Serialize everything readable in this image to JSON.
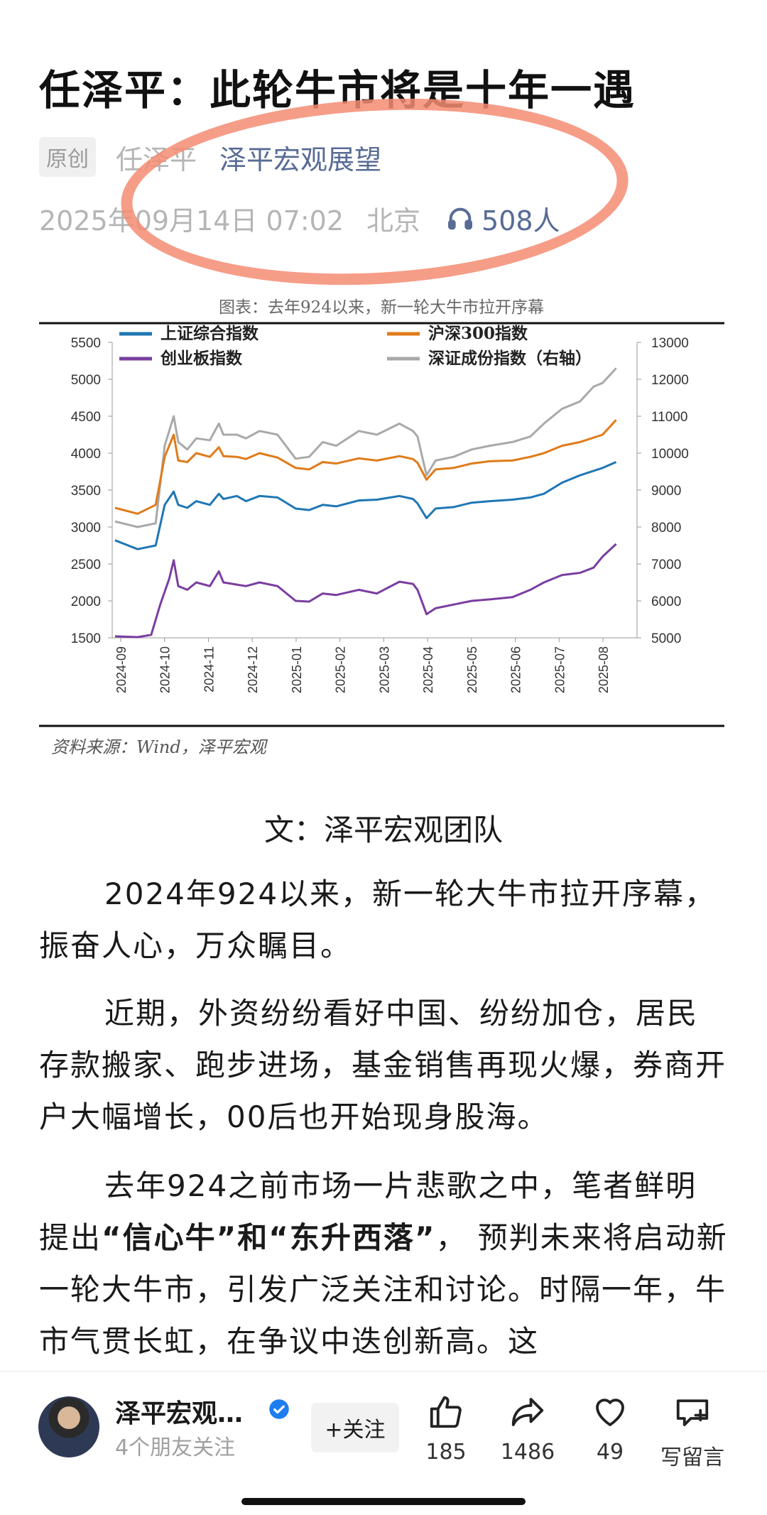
{
  "article": {
    "title": "任泽平：此轮牛市将是十年一遇",
    "badge": "原创",
    "author": "任泽平",
    "account": "泽平宏观展望",
    "datetime": "2025年09月14日 07:02",
    "location": "北京",
    "listeners": "508人",
    "byline": "文：泽平宏观团队",
    "paragraphs": [
      "2024年924以来，新一轮大牛市拉开序幕，振奋人心，万众瞩目。",
      "近期，外资纷纷看好中国、纷纷加仓，居民存款搬家、跑步进场，基金销售再现火爆，券商开户大幅增长，00后也开始现身股海。"
    ],
    "p3": {
      "a": "去年924之前市场一片悲歌之中，笔者鲜明提出",
      "b1": "“信心牛”和“东升西落”",
      "c": "，  预判未来将启动新一轮大牛市，引发广泛关注和讨论。时隔一年，牛市气贯长虹，在争议中迭创新高。这"
    },
    "chart_source": "资料来源：Wind，泽平宏观"
  },
  "chart_data": {
    "type": "line",
    "title": "图表：去年924以来，新一轮大牛市拉开序幕",
    "x_ticks": [
      "2024-09",
      "2024-10",
      "2024-11",
      "2024-12",
      "2025-01",
      "2025-02",
      "2025-03",
      "2025-04",
      "2025-05",
      "2025-06",
      "2025-07",
      "2025-08"
    ],
    "y_left": [
      5500,
      5000,
      4500,
      4000,
      3500,
      3000,
      2500,
      2000,
      1500
    ],
    "y_right": [
      13000,
      12000,
      11000,
      10000,
      9000,
      8000,
      7000,
      6000,
      5000
    ],
    "ylim_left": [
      1500,
      5500
    ],
    "ylim_right": [
      5000,
      13000
    ],
    "legend": [
      "上证综合指数",
      "沪深300指数",
      "创业板指数",
      "深证成份指数（右轴）"
    ],
    "colors": [
      "#1f77b4",
      "#e07b1a",
      "#7a3ea0",
      "#a9a9a9"
    ],
    "series": [
      {
        "name": "上证综合指数",
        "axis": "left",
        "values": [
          [
            0,
            2820
          ],
          [
            5,
            2700
          ],
          [
            9,
            2750
          ],
          [
            11,
            3300
          ],
          [
            13,
            3480
          ],
          [
            14,
            3300
          ],
          [
            16,
            3260
          ],
          [
            18,
            3350
          ],
          [
            21,
            3300
          ],
          [
            23,
            3450
          ],
          [
            24,
            3380
          ],
          [
            27,
            3420
          ],
          [
            29,
            3350
          ],
          [
            32,
            3420
          ],
          [
            36,
            3400
          ],
          [
            40,
            3250
          ],
          [
            43,
            3230
          ],
          [
            46,
            3300
          ],
          [
            49,
            3280
          ],
          [
            54,
            3360
          ],
          [
            58,
            3370
          ],
          [
            63,
            3420
          ],
          [
            66,
            3380
          ],
          [
            67,
            3320
          ],
          [
            69,
            3120
          ],
          [
            71,
            3250
          ],
          [
            75,
            3270
          ],
          [
            79,
            3330
          ],
          [
            83,
            3350
          ],
          [
            88,
            3370
          ],
          [
            92,
            3400
          ],
          [
            95,
            3450
          ],
          [
            99,
            3600
          ],
          [
            103,
            3700
          ],
          [
            108,
            3800
          ],
          [
            111,
            3880
          ]
        ]
      },
      {
        "name": "沪深300指数",
        "axis": "left",
        "values": [
          [
            0,
            3260
          ],
          [
            5,
            3180
          ],
          [
            9,
            3300
          ],
          [
            11,
            3950
          ],
          [
            13,
            4250
          ],
          [
            14,
            3900
          ],
          [
            16,
            3880
          ],
          [
            18,
            4000
          ],
          [
            21,
            3950
          ],
          [
            23,
            4080
          ],
          [
            24,
            3960
          ],
          [
            27,
            3950
          ],
          [
            29,
            3920
          ],
          [
            32,
            4000
          ],
          [
            36,
            3940
          ],
          [
            40,
            3800
          ],
          [
            43,
            3780
          ],
          [
            46,
            3880
          ],
          [
            49,
            3860
          ],
          [
            54,
            3930
          ],
          [
            58,
            3900
          ],
          [
            63,
            3960
          ],
          [
            66,
            3920
          ],
          [
            67,
            3870
          ],
          [
            69,
            3640
          ],
          [
            71,
            3780
          ],
          [
            75,
            3800
          ],
          [
            79,
            3860
          ],
          [
            83,
            3890
          ],
          [
            88,
            3900
          ],
          [
            92,
            3950
          ],
          [
            95,
            4000
          ],
          [
            99,
            4100
          ],
          [
            103,
            4150
          ],
          [
            108,
            4250
          ],
          [
            111,
            4450
          ]
        ]
      },
      {
        "name": "创业板指数",
        "axis": "left",
        "values": [
          [
            0,
            1520
          ],
          [
            5,
            1510
          ],
          [
            8,
            1540
          ],
          [
            10,
            1950
          ],
          [
            12,
            2300
          ],
          [
            13,
            2550
          ],
          [
            14,
            2200
          ],
          [
            16,
            2150
          ],
          [
            18,
            2250
          ],
          [
            21,
            2200
          ],
          [
            23,
            2400
          ],
          [
            24,
            2250
          ],
          [
            27,
            2220
          ],
          [
            29,
            2200
          ],
          [
            32,
            2250
          ],
          [
            36,
            2200
          ],
          [
            40,
            2000
          ],
          [
            43,
            1990
          ],
          [
            46,
            2100
          ],
          [
            49,
            2080
          ],
          [
            54,
            2150
          ],
          [
            58,
            2100
          ],
          [
            63,
            2260
          ],
          [
            66,
            2230
          ],
          [
            67,
            2150
          ],
          [
            69,
            1820
          ],
          [
            71,
            1900
          ],
          [
            75,
            1950
          ],
          [
            79,
            2000
          ],
          [
            83,
            2020
          ],
          [
            88,
            2050
          ],
          [
            92,
            2150
          ],
          [
            95,
            2250
          ],
          [
            99,
            2350
          ],
          [
            103,
            2380
          ],
          [
            106,
            2450
          ],
          [
            108,
            2600
          ],
          [
            111,
            2770
          ]
        ]
      },
      {
        "name": "深证成份指数（右轴）",
        "axis": "right",
        "values": [
          [
            0,
            8150
          ],
          [
            5,
            8000
          ],
          [
            9,
            8100
          ],
          [
            11,
            10200
          ],
          [
            13,
            11000
          ],
          [
            14,
            10300
          ],
          [
            16,
            10100
          ],
          [
            18,
            10400
          ],
          [
            21,
            10350
          ],
          [
            23,
            10800
          ],
          [
            24,
            10500
          ],
          [
            27,
            10500
          ],
          [
            29,
            10400
          ],
          [
            32,
            10600
          ],
          [
            36,
            10500
          ],
          [
            40,
            9850
          ],
          [
            43,
            9900
          ],
          [
            46,
            10300
          ],
          [
            49,
            10200
          ],
          [
            54,
            10600
          ],
          [
            58,
            10500
          ],
          [
            63,
            10800
          ],
          [
            66,
            10600
          ],
          [
            67,
            10450
          ],
          [
            69,
            9400
          ],
          [
            71,
            9800
          ],
          [
            75,
            9900
          ],
          [
            79,
            10100
          ],
          [
            83,
            10200
          ],
          [
            88,
            10300
          ],
          [
            92,
            10450
          ],
          [
            95,
            10800
          ],
          [
            99,
            11200
          ],
          [
            103,
            11400
          ],
          [
            106,
            11800
          ],
          [
            108,
            11900
          ],
          [
            111,
            12300
          ]
        ]
      }
    ]
  },
  "bottom_bar": {
    "name": "泽平宏观…",
    "friends": "4个朋友关注",
    "follow": "+关注",
    "likes": "185",
    "shares": "1486",
    "favorites": "49",
    "comment": "写留言"
  }
}
